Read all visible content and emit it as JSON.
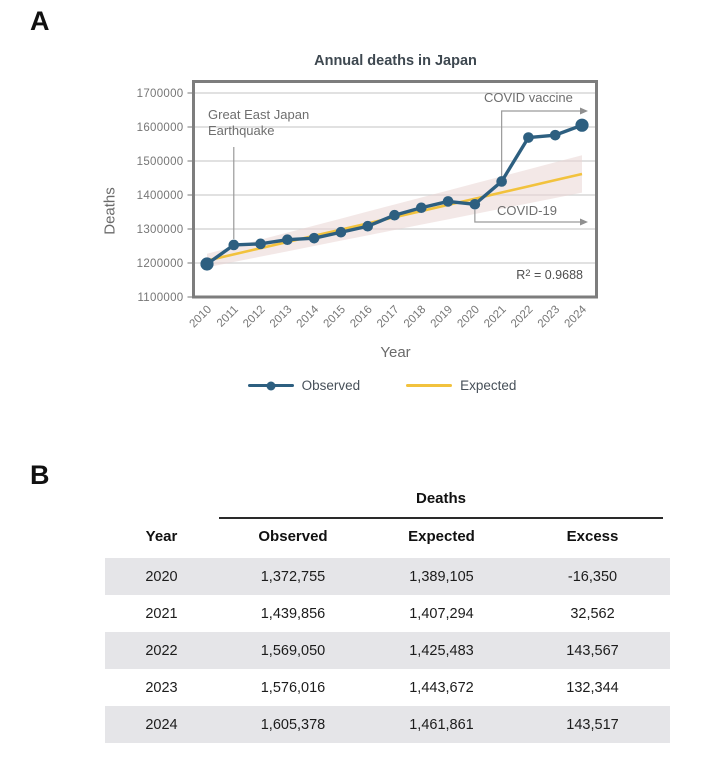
{
  "panel_a": {
    "label": "A",
    "annotations": {
      "earthquake_line1": "Great East Japan",
      "earthquake_line2": "Earthquake",
      "covid_vaccine": "COVID vaccine",
      "covid19": "COVID-19",
      "r2_base": "R",
      "r2_exp": "2",
      "r2_rest": " = 0.9688"
    },
    "legend": {
      "observed": "Observed",
      "expected": "Expected"
    }
  },
  "chart_data": {
    "type": "line",
    "title": "Annual deaths in Japan",
    "xlabel": "Year",
    "ylabel": "Deaths",
    "x": [
      2010,
      2011,
      2012,
      2013,
      2014,
      2015,
      2016,
      2017,
      2018,
      2019,
      2020,
      2021,
      2022,
      2023,
      2024
    ],
    "ylim": [
      1100000,
      1700000
    ],
    "grid": true,
    "legend_position": "bottom",
    "y_ticks": [
      {
        "v": 1700000,
        "label": "1700000"
      },
      {
        "v": 1600000,
        "label": "1600000"
      },
      {
        "v": 1500000,
        "label": "1500000"
      },
      {
        "v": 1400000,
        "label": "1400000"
      },
      {
        "v": 1300000,
        "label": "1300000"
      },
      {
        "v": 1200000,
        "label": "1200000"
      },
      {
        "v": 1100000,
        "label": "1100000"
      }
    ],
    "series": [
      {
        "name": "Observed",
        "color": "#2d5f80",
        "values": [
          1197014,
          1253068,
          1256359,
          1268438,
          1273025,
          1290510,
          1308158,
          1340567,
          1362470,
          1381093,
          1372755,
          1439856,
          1569050,
          1576016,
          1605378
        ]
      },
      {
        "name": "Expected",
        "color": "#f2c23d",
        "values": [
          1207215,
          1225404,
          1243593,
          1261782,
          1279971,
          1298160,
          1316349,
          1334538,
          1352727,
          1370916,
          1389105,
          1407294,
          1425483,
          1443672,
          1461861
        ]
      }
    ],
    "band": {
      "color": "#e9d6d3",
      "lower": [
        1187215,
        1202904,
        1218593,
        1234282,
        1249971,
        1265660,
        1281349,
        1297038,
        1312727,
        1328416,
        1344105,
        1359794,
        1375483,
        1391172,
        1406861
      ],
      "upper": [
        1227215,
        1247904,
        1268593,
        1289282,
        1309971,
        1330660,
        1351349,
        1372038,
        1392727,
        1413416,
        1434105,
        1454794,
        1475483,
        1496172,
        1516861
      ]
    },
    "r_squared": 0.9688,
    "annotations": [
      "Great East Japan Earthquake",
      "COVID-19",
      "COVID vaccine"
    ]
  },
  "panel_b": {
    "label": "B",
    "table": {
      "group_header": "Deaths",
      "columns": {
        "year": "Year",
        "observed": "Observed",
        "expected": "Expected",
        "excess": "Excess"
      },
      "rows": [
        {
          "year": "2020",
          "observed": "1,372,755",
          "expected": "1,389,105",
          "excess": "-16,350"
        },
        {
          "year": "2021",
          "observed": "1,439,856",
          "expected": "1,407,294",
          "excess": "32,562"
        },
        {
          "year": "2022",
          "observed": "1,569,050",
          "expected": "1,425,483",
          "excess": "143,567"
        },
        {
          "year": "2023",
          "observed": "1,576,016",
          "expected": "1,443,672",
          "excess": "132,344"
        },
        {
          "year": "2024",
          "observed": "1,605,378",
          "expected": "1,461,861",
          "excess": "143,517"
        }
      ]
    }
  },
  "colors": {
    "observed_line": "#2d5f80",
    "expected_line": "#f2c23d",
    "confidence_band": "#e9d6d3",
    "gridline": "#d7d7d7",
    "frame": "#7d7d7d",
    "table_stripe": "#e5e5e8"
  }
}
